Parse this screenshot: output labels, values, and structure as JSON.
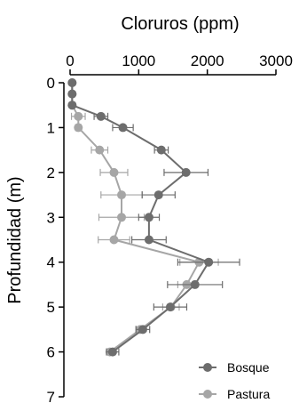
{
  "chart_data": {
    "type": "line",
    "title": "Cloruros (ppm)",
    "xlabel": "Cloruros (ppm)",
    "ylabel": "Profundidad (m)",
    "x_axis_position": "top",
    "y_axis_inverted": true,
    "xlim": [
      0,
      3000
    ],
    "ylim": [
      0,
      7
    ],
    "x_ticks": [
      0,
      1000,
      2000,
      3000
    ],
    "x_tick_labels": [
      "0",
      "1000",
      "2000",
      "3000"
    ],
    "y_ticks": [
      0,
      1,
      2,
      3,
      4,
      5,
      6,
      7
    ],
    "y_tick_labels": [
      "0",
      "1",
      "2",
      "3",
      "4",
      "5",
      "6",
      "7"
    ],
    "grid": false,
    "legend_position": "bottom-right",
    "series": [
      {
        "name": "Bosque",
        "color": "#6d6d6d",
        "points": [
          {
            "y": 0.0,
            "x": 30,
            "err": 0
          },
          {
            "y": 0.25,
            "x": 30,
            "err": 0
          },
          {
            "y": 0.5,
            "x": 30,
            "err": 0
          },
          {
            "y": 0.75,
            "x": 450,
            "err": 100
          },
          {
            "y": 1.0,
            "x": 770,
            "err": 150
          },
          {
            "y": 1.5,
            "x": 1330,
            "err": 100
          },
          {
            "y": 2.0,
            "x": 1690,
            "err": 320
          },
          {
            "y": 2.5,
            "x": 1290,
            "err": 240
          },
          {
            "y": 3.0,
            "x": 1150,
            "err": 150
          },
          {
            "y": 3.5,
            "x": 1150,
            "err": 250
          },
          {
            "y": 4.0,
            "x": 2020,
            "err": 450
          },
          {
            "y": 4.5,
            "x": 1820,
            "err": 400
          },
          {
            "y": 5.0,
            "x": 1460,
            "err": 240
          },
          {
            "y": 5.5,
            "x": 1060,
            "err": 100
          },
          {
            "y": 6.0,
            "x": 620,
            "err": 90
          }
        ]
      },
      {
        "name": "Pastura",
        "color": "#a6a6a6",
        "points": [
          {
            "y": 0.0,
            "x": 30,
            "err": 0
          },
          {
            "y": 0.25,
            "x": 30,
            "err": 0
          },
          {
            "y": 0.5,
            "x": 30,
            "err": 0
          },
          {
            "y": 0.75,
            "x": 120,
            "err": 100
          },
          {
            "y": 1.0,
            "x": 120,
            "err": 40
          },
          {
            "y": 1.5,
            "x": 430,
            "err": 120
          },
          {
            "y": 2.0,
            "x": 640,
            "err": 200
          },
          {
            "y": 2.5,
            "x": 750,
            "err": 300
          },
          {
            "y": 3.0,
            "x": 750,
            "err": 330
          },
          {
            "y": 3.5,
            "x": 640,
            "err": 230
          },
          {
            "y": 4.0,
            "x": 1880,
            "err": 280
          },
          {
            "y": 4.5,
            "x": 1700,
            "err": 130
          },
          {
            "y": 5.0,
            "x": 1470,
            "err": 120
          },
          {
            "y": 5.5,
            "x": 1020,
            "err": 60
          },
          {
            "y": 6.0,
            "x": 580,
            "err": 40
          }
        ]
      }
    ]
  }
}
